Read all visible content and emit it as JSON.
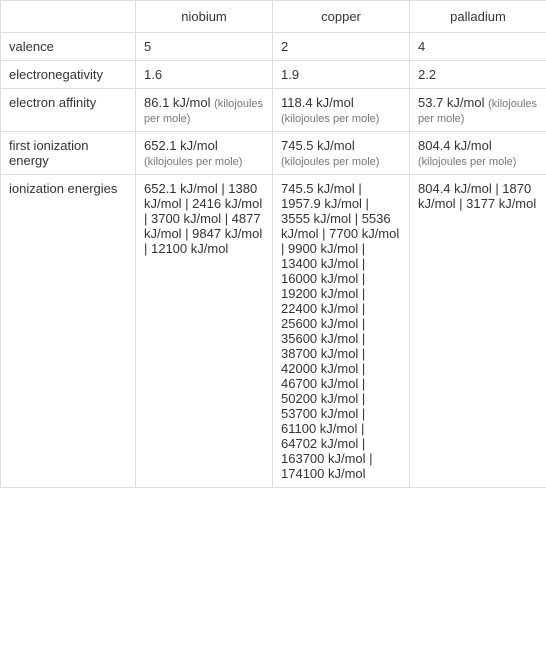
{
  "headers": {
    "blank": "",
    "col1": "niobium",
    "col2": "copper",
    "col3": "palladium"
  },
  "rows": {
    "valence": {
      "label": "valence",
      "niobium": "5",
      "copper": "2",
      "palladium": "4"
    },
    "electronegativity": {
      "label": "electronegativity",
      "niobium": "1.6",
      "copper": "1.9",
      "palladium": "2.2"
    },
    "electron_affinity": {
      "label": "electron affinity",
      "niobium_val": "86.1 kJ/mol",
      "niobium_note": "(kilojoules per mole)",
      "copper_val": "118.4 kJ/mol",
      "copper_note": "(kilojoules per mole)",
      "palladium_val": "53.7 kJ/mol",
      "palladium_note": "(kilojoules per mole)"
    },
    "first_ionization": {
      "label": "first ionization energy",
      "niobium_val": "652.1 kJ/mol",
      "niobium_note": "(kilojoules per mole)",
      "copper_val": "745.5 kJ/mol",
      "copper_note": "(kilojoules per mole)",
      "palladium_val": "804.4 kJ/mol",
      "palladium_note": "(kilojoules per mole)"
    },
    "ionization_energies": {
      "label": "ionization energies",
      "niobium": "652.1 kJ/mol  |  1380 kJ/mol  |  2416 kJ/mol  |  3700 kJ/mol  |  4877 kJ/mol  |  9847 kJ/mol  |  12100 kJ/mol",
      "copper": "745.5 kJ/mol  |  1957.9 kJ/mol  |  3555 kJ/mol  |  5536 kJ/mol  |  7700 kJ/mol  |  9900 kJ/mol  |  13400 kJ/mol  |  16000 kJ/mol  |  19200 kJ/mol  |  22400 kJ/mol  |  25600 kJ/mol  |  35600 kJ/mol  |  38700 kJ/mol  |  42000 kJ/mol  |  46700 kJ/mol  |  50200 kJ/mol  |  53700 kJ/mol  |  61100 kJ/mol  |  64702 kJ/mol  |  163700 kJ/mol  |  174100 kJ/mol",
      "palladium": "804.4 kJ/mol  |  1870 kJ/mol  |  3177 kJ/mol"
    }
  }
}
